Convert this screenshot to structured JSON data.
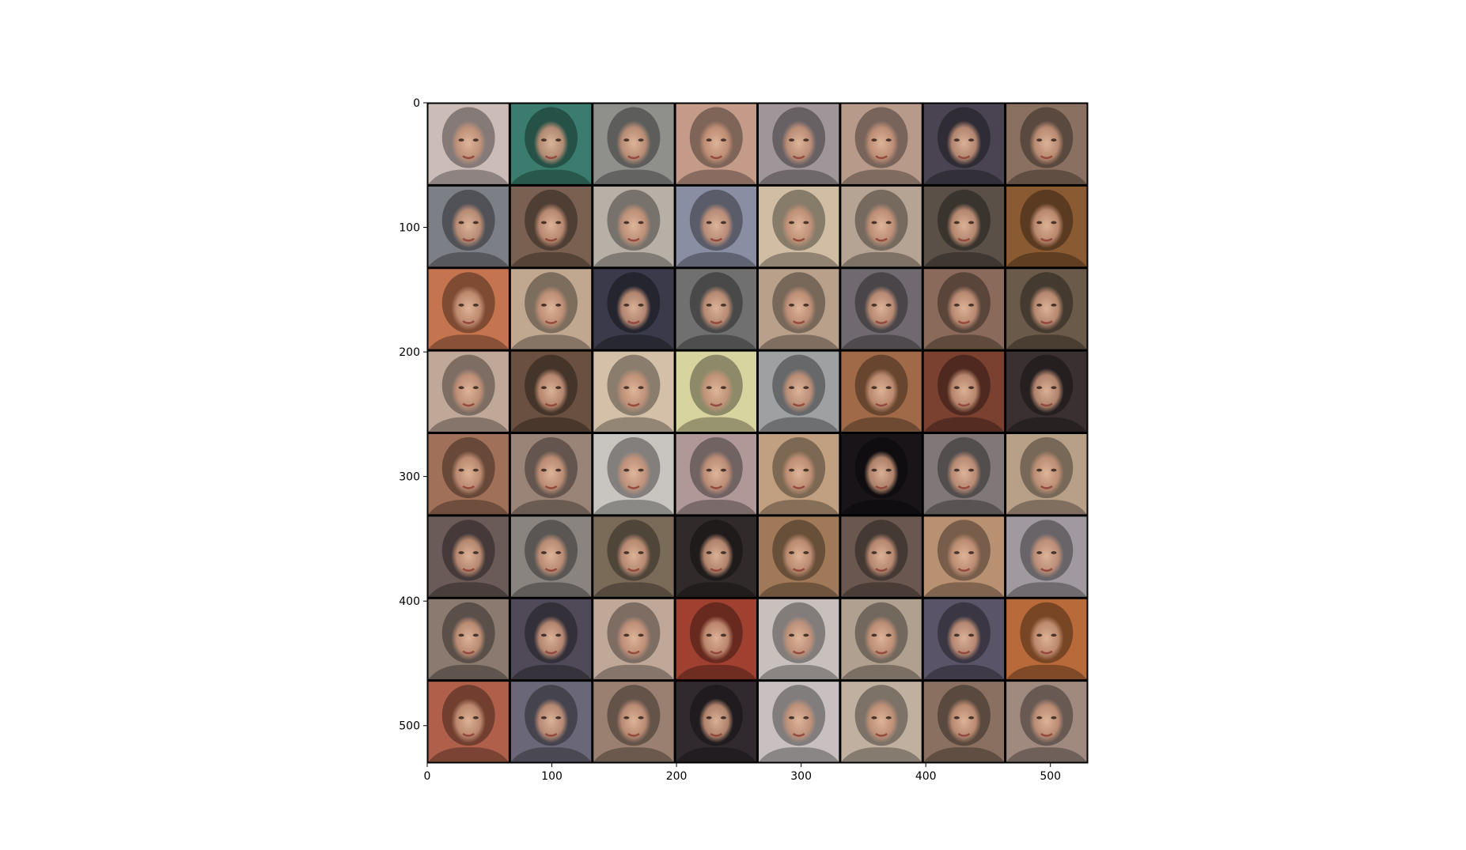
{
  "figure": {
    "type": "image_grid",
    "description_shown": "8x8 grid of generated face images shown with matplotlib imshow axes",
    "grid": {
      "rows": 8,
      "cols": 8
    },
    "x_axis": {
      "range": [
        0,
        530
      ],
      "ticks": [
        0,
        100,
        200,
        300,
        400,
        500
      ],
      "tick_labels": [
        "0",
        "100",
        "200",
        "300",
        "400",
        "500"
      ]
    },
    "y_axis": {
      "range": [
        0,
        530
      ],
      "ticks": [
        0,
        100,
        200,
        300,
        400,
        500
      ],
      "tick_labels": [
        "0",
        "100",
        "200",
        "300",
        "400",
        "500"
      ],
      "inverted": true
    },
    "colors": {
      "separator": "#000000",
      "background": "#ffffff"
    }
  },
  "tiles": [
    [
      "#ccbcb8",
      "#3a7d6e",
      "#8f8f8c",
      "#c49a88",
      "#a0969a",
      "#b89a8a",
      "#4a4452",
      "#8a7060"
    ],
    [
      "#7d7f86",
      "#7a6050",
      "#b8b0a6",
      "#8a8ea2",
      "#d0bda4",
      "#b5a393",
      "#5a5048",
      "#8a5a32"
    ],
    [
      "#c4744f",
      "#c0a890",
      "#3a3a4a",
      "#707070",
      "#b8a08a",
      "#706a70",
      "#8a6a5a",
      "#6a5a4a"
    ],
    [
      "#c0a898",
      "#6a5040",
      "#d4c0a8",
      "#d8d4a0",
      "#9ea0a2",
      "#a06a48",
      "#7a4030",
      "#3a3032"
    ],
    [
      "#a07058",
      "#9a8478",
      "#c8c4c0",
      "#b09898",
      "#c0a080",
      "#181418",
      "#807878",
      "#b8a088"
    ],
    [
      "#6a5a58",
      "#8a8480",
      "#7a6a58",
      "#302a2a",
      "#a07a58",
      "#6a5850",
      "#b89072",
      "#a09aa0"
    ],
    [
      "#8a7a70",
      "#504a58",
      "#c0a898",
      "#a04030",
      "#c8c0bc",
      "#b0a090",
      "#5a5468",
      "#b86a3a"
    ],
    [
      "#b0604a",
      "#6a6878",
      "#9a8070",
      "#302a2e",
      "#c8c0c0",
      "#c0b0a0",
      "#8a7060",
      "#a08a80"
    ]
  ]
}
